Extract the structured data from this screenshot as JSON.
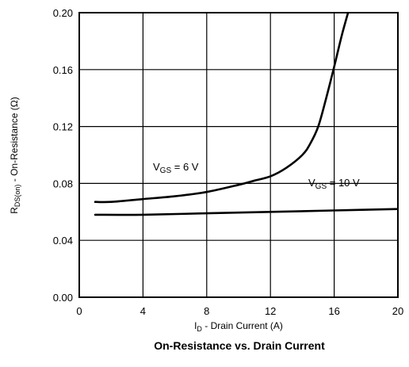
{
  "chart_data": {
    "type": "line",
    "title": "On-Resistance vs. Drain Current",
    "xlabel": {
      "main": "I",
      "sub": "D",
      "rest": " - Drain Current (A)"
    },
    "ylabel": {
      "main": "R",
      "sub": "DS(on)",
      "rest": " - On-Resistance (Ω)"
    },
    "xlim": [
      0,
      20
    ],
    "ylim": [
      0,
      0.2
    ],
    "xticks": [
      0,
      4,
      8,
      12,
      16,
      20
    ],
    "yticks": [
      0.0,
      0.04,
      0.08,
      0.12,
      0.16,
      0.2
    ],
    "xtick_labels": [
      "0",
      "4",
      "8",
      "12",
      "16",
      "20"
    ],
    "ytick_labels": [
      "0.00",
      "0.04",
      "0.08",
      "0.12",
      "0.16",
      "0.20"
    ],
    "grid": true,
    "series": [
      {
        "name": "VGS = 6 V",
        "label": {
          "main": "V",
          "sub": "GS",
          "rest": " = 6 V"
        },
        "x": [
          1,
          2,
          4,
          6,
          8,
          10,
          11,
          12,
          13,
          14,
          14.5,
          15,
          15.5,
          16,
          16.5,
          17
        ],
        "y": [
          0.067,
          0.067,
          0.069,
          0.071,
          0.074,
          0.079,
          0.082,
          0.085,
          0.091,
          0.1,
          0.108,
          0.12,
          0.14,
          0.162,
          0.185,
          0.205
        ]
      },
      {
        "name": "VGS = 10 V",
        "label": {
          "main": "V",
          "sub": "GS",
          "rest": " = 10 V"
        },
        "x": [
          1,
          4,
          8,
          12,
          16,
          20
        ],
        "y": [
          0.058,
          0.058,
          0.059,
          0.06,
          0.061,
          0.062
        ]
      }
    ]
  }
}
